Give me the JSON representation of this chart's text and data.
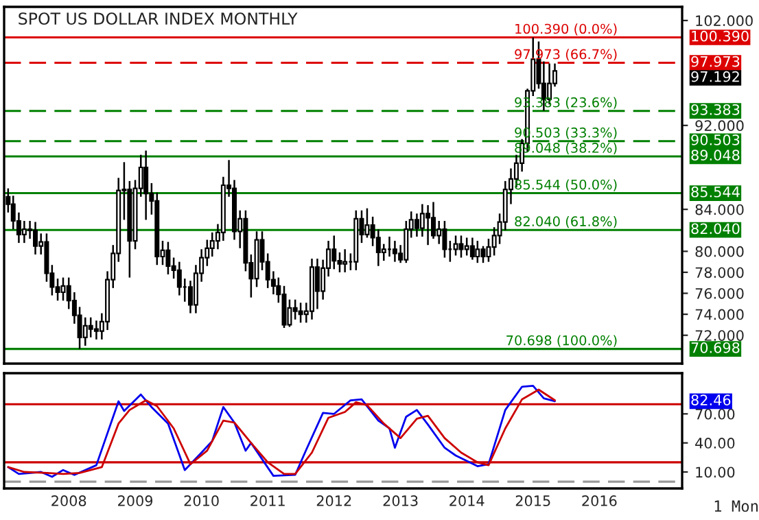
{
  "chart_data": [
    {
      "type": "candlestick",
      "title": "SPOT US DOLLAR INDEX MONTHLY",
      "color": "#000000",
      "tick_labels": "y",
      "xlim": [
        "2007-01-10",
        "2017-04-01"
      ],
      "ylim": [
        69.3,
        103.3
      ],
      "yticks": [
        {
          "value": 72,
          "label": "72.000"
        },
        {
          "value": 74,
          "label": "74.000"
        },
        {
          "value": 76,
          "label": "76.000"
        },
        {
          "value": 78,
          "label": "78.000"
        },
        {
          "value": 80,
          "label": "80.000"
        },
        {
          "value": 84,
          "label": "84.000"
        },
        {
          "value": 92,
          "label": "92.000"
        },
        {
          "value": 102,
          "label": "102.000"
        }
      ],
      "x": [
        "2007-02",
        "2007-03",
        "2007-04",
        "2007-05",
        "2007-06",
        "2007-07",
        "2007-08",
        "2007-09",
        "2007-10",
        "2007-11",
        "2007-12",
        "2008-01",
        "2008-02",
        "2008-03",
        "2008-04",
        "2008-05",
        "2008-06",
        "2008-07",
        "2008-08",
        "2008-09",
        "2008-10",
        "2008-11",
        "2008-12",
        "2009-01",
        "2009-02",
        "2009-03",
        "2009-04",
        "2009-05",
        "2009-06",
        "2009-07",
        "2009-08",
        "2009-09",
        "2009-10",
        "2009-11",
        "2009-12",
        "2010-01",
        "2010-02",
        "2010-03",
        "2010-04",
        "2010-05",
        "2010-06",
        "2010-07",
        "2010-08",
        "2010-09",
        "2010-10",
        "2010-11",
        "2010-12",
        "2011-01",
        "2011-02",
        "2011-03",
        "2011-04",
        "2011-05",
        "2011-06",
        "2011-07",
        "2011-08",
        "2011-09",
        "2011-10",
        "2011-11",
        "2011-12",
        "2012-01",
        "2012-02",
        "2012-03",
        "2012-04",
        "2012-05",
        "2012-06",
        "2012-07",
        "2012-08",
        "2012-09",
        "2012-10",
        "2012-11",
        "2012-12",
        "2013-01",
        "2013-02",
        "2013-03",
        "2013-04",
        "2013-05",
        "2013-06",
        "2013-07",
        "2013-08",
        "2013-09",
        "2013-10",
        "2013-11",
        "2013-12",
        "2014-01",
        "2014-02",
        "2014-03",
        "2014-04",
        "2014-05",
        "2014-06",
        "2014-07",
        "2014-08",
        "2014-09",
        "2014-10",
        "2014-11",
        "2014-12",
        "2015-01",
        "2015-02",
        "2015-03",
        "2015-04",
        "2015-05"
      ],
      "ohlc": [
        [
          85.2,
          86.0,
          83.7,
          84.5
        ],
        [
          84.5,
          85.3,
          82.1,
          82.9
        ],
        [
          82.9,
          83.7,
          80.8,
          81.6
        ],
        [
          81.6,
          82.9,
          80.8,
          82.1
        ],
        [
          82.1,
          82.9,
          81.2,
          82.0
        ],
        [
          82.0,
          82.8,
          79.7,
          80.5
        ],
        [
          80.5,
          81.7,
          79.7,
          80.9
        ],
        [
          80.9,
          81.7,
          77.1,
          77.9
        ],
        [
          77.9,
          78.7,
          75.8,
          76.6
        ],
        [
          76.6,
          77.4,
          75.3,
          76.1
        ],
        [
          76.1,
          77.5,
          75.3,
          76.7
        ],
        [
          76.7,
          77.5,
          74.5,
          75.3
        ],
        [
          75.3,
          76.1,
          73.1,
          73.9
        ],
        [
          73.9,
          74.7,
          70.698,
          71.8
        ],
        [
          71.8,
          73.7,
          71.0,
          72.9
        ],
        [
          72.9,
          73.7,
          71.8,
          72.6
        ],
        [
          72.6,
          73.4,
          71.6,
          72.4
        ],
        [
          72.4,
          74.1,
          71.6,
          73.3
        ],
        [
          73.3,
          78.1,
          72.5,
          77.3
        ],
        [
          77.3,
          80.6,
          76.5,
          79.8
        ],
        [
          79.8,
          87.0,
          79.0,
          85.8
        ],
        [
          85.8,
          88.5,
          83.0,
          85.9
        ],
        [
          85.9,
          86.7,
          77.5,
          81.0
        ],
        [
          81.0,
          86.8,
          80.2,
          86.0
        ],
        [
          86.0,
          89.2,
          85.2,
          88.0
        ],
        [
          88.0,
          89.6,
          83.0,
          85.5
        ],
        [
          85.5,
          86.5,
          83.5,
          84.8
        ],
        [
          84.8,
          85.6,
          78.7,
          79.5
        ],
        [
          79.5,
          81.0,
          78.7,
          80.1
        ],
        [
          80.1,
          80.9,
          77.8,
          78.6
        ],
        [
          78.6,
          79.4,
          77.4,
          78.2
        ],
        [
          78.2,
          79.0,
          75.8,
          76.6
        ],
        [
          76.6,
          77.4,
          75.2,
          76.6
        ],
        [
          76.6,
          77.2,
          74.1,
          74.9
        ],
        [
          74.9,
          78.7,
          74.1,
          77.9
        ],
        [
          77.9,
          80.2,
          77.1,
          79.4
        ],
        [
          79.4,
          81.1,
          78.6,
          80.3
        ],
        [
          80.3,
          81.8,
          79.5,
          81.0
        ],
        [
          81.0,
          82.6,
          80.2,
          81.8
        ],
        [
          81.8,
          87.1,
          81.0,
          86.3
        ],
        [
          86.3,
          88.7,
          85.2,
          86.0
        ],
        [
          86.0,
          86.8,
          81.1,
          81.9
        ],
        [
          81.9,
          83.9,
          80.3,
          83.1
        ],
        [
          83.1,
          83.9,
          78.1,
          78.9
        ],
        [
          78.9,
          79.7,
          75.6,
          77.4
        ],
        [
          77.4,
          81.9,
          76.6,
          81.1
        ],
        [
          81.1,
          81.9,
          78.2,
          79.0
        ],
        [
          79.0,
          79.8,
          76.5,
          77.3
        ],
        [
          77.3,
          78.1,
          75.9,
          76.7
        ],
        [
          76.7,
          77.5,
          75.1,
          75.9
        ],
        [
          75.9,
          76.7,
          72.7,
          73.0
        ],
        [
          73.0,
          75.4,
          72.8,
          74.6
        ],
        [
          74.6,
          75.4,
          73.5,
          74.3
        ],
        [
          74.3,
          75.1,
          73.2,
          74.0
        ],
        [
          74.0,
          75.1,
          73.2,
          74.3
        ],
        [
          74.3,
          79.3,
          73.5,
          78.5
        ],
        [
          78.5,
          79.3,
          74.5,
          76.2
        ],
        [
          76.2,
          79.2,
          75.4,
          78.4
        ],
        [
          78.4,
          81.0,
          77.6,
          80.2
        ],
        [
          80.2,
          81.5,
          78.3,
          79.1
        ],
        [
          79.1,
          79.9,
          78.0,
          78.8
        ],
        [
          78.8,
          80.2,
          78.0,
          79.0
        ],
        [
          79.0,
          79.8,
          78.2,
          79.0
        ],
        [
          79.0,
          83.9,
          78.2,
          83.1
        ],
        [
          83.1,
          83.9,
          80.8,
          81.6
        ],
        [
          81.6,
          84.1,
          81.3,
          82.5
        ],
        [
          82.5,
          83.3,
          80.5,
          81.3
        ],
        [
          81.3,
          82.1,
          78.6,
          79.9
        ],
        [
          79.9,
          80.7,
          79.1,
          80.2
        ],
        [
          80.2,
          81.4,
          79.5,
          80.2
        ],
        [
          80.2,
          81.0,
          79.0,
          79.8
        ],
        [
          79.8,
          80.6,
          78.9,
          79.2
        ],
        [
          79.2,
          82.9,
          78.9,
          82.1
        ],
        [
          82.1,
          83.8,
          81.3,
          83.0
        ],
        [
          83.0,
          83.6,
          81.4,
          82.2
        ],
        [
          82.2,
          84.5,
          81.4,
          83.6
        ],
        [
          83.6,
          84.4,
          80.6,
          83.2
        ],
        [
          83.2,
          84.7,
          81.2,
          81.5
        ],
        [
          81.5,
          82.9,
          80.7,
          82.1
        ],
        [
          82.1,
          82.9,
          79.4,
          80.2
        ],
        [
          80.2,
          81.0,
          79.0,
          80.2
        ],
        [
          80.2,
          81.5,
          79.6,
          80.7
        ],
        [
          80.7,
          81.5,
          79.4,
          80.2
        ],
        [
          80.2,
          81.3,
          79.6,
          80.5
        ],
        [
          80.5,
          81.3,
          79.2,
          79.5
        ],
        [
          79.5,
          81.0,
          78.9,
          80.2
        ],
        [
          80.2,
          80.5,
          78.9,
          79.5
        ],
        [
          79.5,
          81.2,
          79.0,
          80.4
        ],
        [
          80.4,
          82.3,
          79.6,
          81.5
        ],
        [
          81.5,
          83.6,
          80.7,
          82.8
        ],
        [
          82.8,
          86.7,
          82.0,
          85.9
        ],
        [
          85.9,
          87.9,
          84.5,
          86.9
        ],
        [
          86.9,
          89.2,
          86.1,
          88.4
        ],
        [
          88.4,
          90.7,
          87.6,
          90.3
        ],
        [
          90.3,
          95.5,
          89.5,
          95.3
        ],
        [
          95.3,
          100.39,
          94.8,
          98.3
        ],
        [
          98.3,
          100.0,
          95.5,
          96.0
        ],
        [
          96.0,
          98.1,
          93.4,
          94.5
        ],
        [
          94.5,
          97.9,
          94.0,
          96.0
        ],
        [
          96.0,
          97.9,
          95.7,
          97.192
        ]
      ],
      "ref_lines": [
        {
          "axis": "y",
          "value": 100.39,
          "label": "100.390 (0.0%)",
          "color": "#dd0000",
          "line_style": "solid"
        },
        {
          "axis": "y",
          "value": 97.973,
          "label": "97.973 (66.7%)",
          "color": "#dd0000",
          "line_style": "dashed"
        },
        {
          "axis": "y",
          "value": 93.383,
          "label": "93.383 (23.6%)",
          "color": "#008000",
          "line_style": "dashed"
        },
        {
          "axis": "y",
          "value": 90.503,
          "label": "90.503 (33.3%)",
          "color": "#008000",
          "line_style": "dashed"
        },
        {
          "axis": "y",
          "value": 89.048,
          "label": "89.048 (38.2%)",
          "color": "#008000",
          "line_style": "solid"
        },
        {
          "axis": "y",
          "value": 85.544,
          "label": "85.544 (50.0%)",
          "color": "#008000",
          "line_style": "solid"
        },
        {
          "axis": "y",
          "value": 82.04,
          "label": "82.040 (61.8%)",
          "color": "#008000",
          "line_style": "solid"
        },
        {
          "axis": "y",
          "value": 70.698,
          "label": "70.698 (100.0%)",
          "color": "#008000",
          "line_style": "solid"
        }
      ],
      "annotations": [
        {
          "text": "100.390",
          "x": "2017-04-01",
          "y": 100.39
        },
        {
          "text": "97.973",
          "x": "2017-04-01",
          "y": 97.973
        },
        "97.192",
        {
          "text": "93.383",
          "x": "2017-04-01",
          "y": 93.383
        },
        {
          "text": "90.503",
          "x": "2017-04-01",
          "y": 90.503
        },
        {
          "text": "89.048",
          "x": "2017-04-01",
          "y": 89.048
        },
        {
          "text": "85.544",
          "x": "2017-04-01",
          "y": 85.544
        },
        {
          "text": "82.040",
          "x": "2017-04-01",
          "y": 82.04
        },
        {
          "text": "70.698",
          "x": "2017-04-01",
          "y": 70.698
        }
      ]
    },
    {
      "type": "line",
      "xlim": [
        "2007-01-10",
        "2017-04-01"
      ],
      "xticks": [
        {
          "value": "2008-01-01",
          "label": "2008"
        },
        {
          "value": "2009-01-01",
          "label": "2009"
        },
        {
          "value": "2010-01-01",
          "label": "2010"
        },
        {
          "value": "2011-01-01",
          "label": "2011"
        },
        {
          "value": "2012-01-01",
          "label": "2012"
        },
        {
          "value": "2013-01-01",
          "label": "2013"
        },
        {
          "value": "2014-01-01",
          "label": "2014"
        },
        {
          "value": "2015-01-01",
          "label": "2015"
        },
        {
          "value": "2016-01-01",
          "label": "2016"
        }
      ],
      "ylim": [
        -7,
        112
      ],
      "yticks": [
        {
          "value": 10,
          "label": "10.00"
        },
        {
          "value": 40,
          "label": "40.00"
        },
        {
          "value": 70,
          "label": "70.00"
        }
      ],
      "series": [
        {
          "color": "#0000ee",
          "x": [
            "2007-02",
            "2007-04",
            "2007-08",
            "2007-10",
            "2007-12",
            "2008-02",
            "2008-06",
            "2008-10",
            "2008-11",
            "2009-02",
            "2009-04",
            "2009-07",
            "2009-10",
            "2010-01",
            "2010-03",
            "2010-05",
            "2010-07",
            "2010-09",
            "2010-10",
            "2011-02",
            "2011-06",
            "2011-08",
            "2011-11",
            "2012-01",
            "2012-04",
            "2012-06",
            "2012-09",
            "2012-11",
            "2012-12",
            "2013-02",
            "2013-04",
            "2013-06",
            "2013-09",
            "2013-11",
            "2014-03",
            "2014-05",
            "2014-08",
            "2014-11",
            "2015-01",
            "2015-03",
            "2015-05"
          ],
          "values": [
            15,
            8,
            10,
            5,
            12,
            7,
            17,
            83,
            73,
            90,
            77,
            60,
            12,
            30,
            42,
            77,
            61,
            32,
            40,
            6,
            7,
            33,
            71,
            70,
            84,
            85,
            63,
            55,
            35,
            67,
            74,
            59,
            35,
            27,
            16,
            18,
            74,
            98,
            99,
            86,
            83
          ]
        },
        {
          "color": "#cc0000",
          "x": [
            "2007-02",
            "2007-05",
            "2007-09",
            "2007-12",
            "2008-03",
            "2008-07",
            "2008-10",
            "2008-12",
            "2009-03",
            "2009-05",
            "2009-08",
            "2009-11",
            "2010-02",
            "2010-05",
            "2010-07",
            "2010-10",
            "2011-01",
            "2011-04",
            "2011-06",
            "2011-09",
            "2011-12",
            "2012-03",
            "2012-05",
            "2012-07",
            "2012-10",
            "2013-01",
            "2013-04",
            "2013-06",
            "2013-09",
            "2013-12",
            "2014-03",
            "2014-05",
            "2014-08",
            "2014-11",
            "2015-02",
            "2015-05"
          ],
          "values": [
            15,
            10,
            9,
            8,
            9,
            15,
            60,
            74,
            84,
            78,
            55,
            18,
            32,
            63,
            61,
            40,
            20,
            8,
            8,
            30,
            66,
            72,
            82,
            79,
            60,
            45,
            65,
            68,
            45,
            30,
            20,
            17,
            55,
            85,
            95,
            84
          ]
        }
      ],
      "ref_lines": [
        {
          "axis": "y",
          "value": 80,
          "color": "#cc0000",
          "line_style": "solid"
        },
        {
          "axis": "y",
          "value": 20,
          "color": "#cc0000",
          "line_style": "solid"
        },
        {
          "axis": "y",
          "value": 0,
          "color": "#999999",
          "line_style": "dashed"
        }
      ],
      "xlabel": "1 Mon",
      "annotations": [
        "82.46"
      ]
    }
  ]
}
